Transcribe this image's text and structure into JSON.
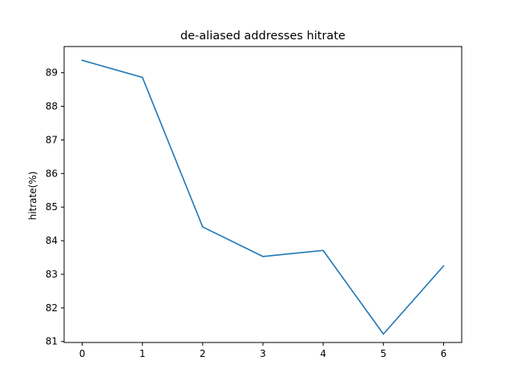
{
  "chart_data": {
    "type": "line",
    "title": "de-aliased addresses hitrate",
    "xlabel": "",
    "ylabel": "hitrate(%)",
    "x": [
      0,
      1,
      2,
      3,
      4,
      5,
      6
    ],
    "series": [
      {
        "values": [
          89.37,
          88.86,
          84.41,
          83.53,
          83.71,
          81.22,
          83.25
        ]
      }
    ],
    "xlim": [
      -0.3,
      6.3
    ],
    "ylim": [
      80.97,
      89.78
    ],
    "xticks": [
      0,
      1,
      2,
      3,
      4,
      5,
      6
    ],
    "yticks": [
      81,
      82,
      83,
      84,
      85,
      86,
      87,
      88,
      89
    ],
    "grid": false,
    "line_color": "#1f77b4"
  }
}
